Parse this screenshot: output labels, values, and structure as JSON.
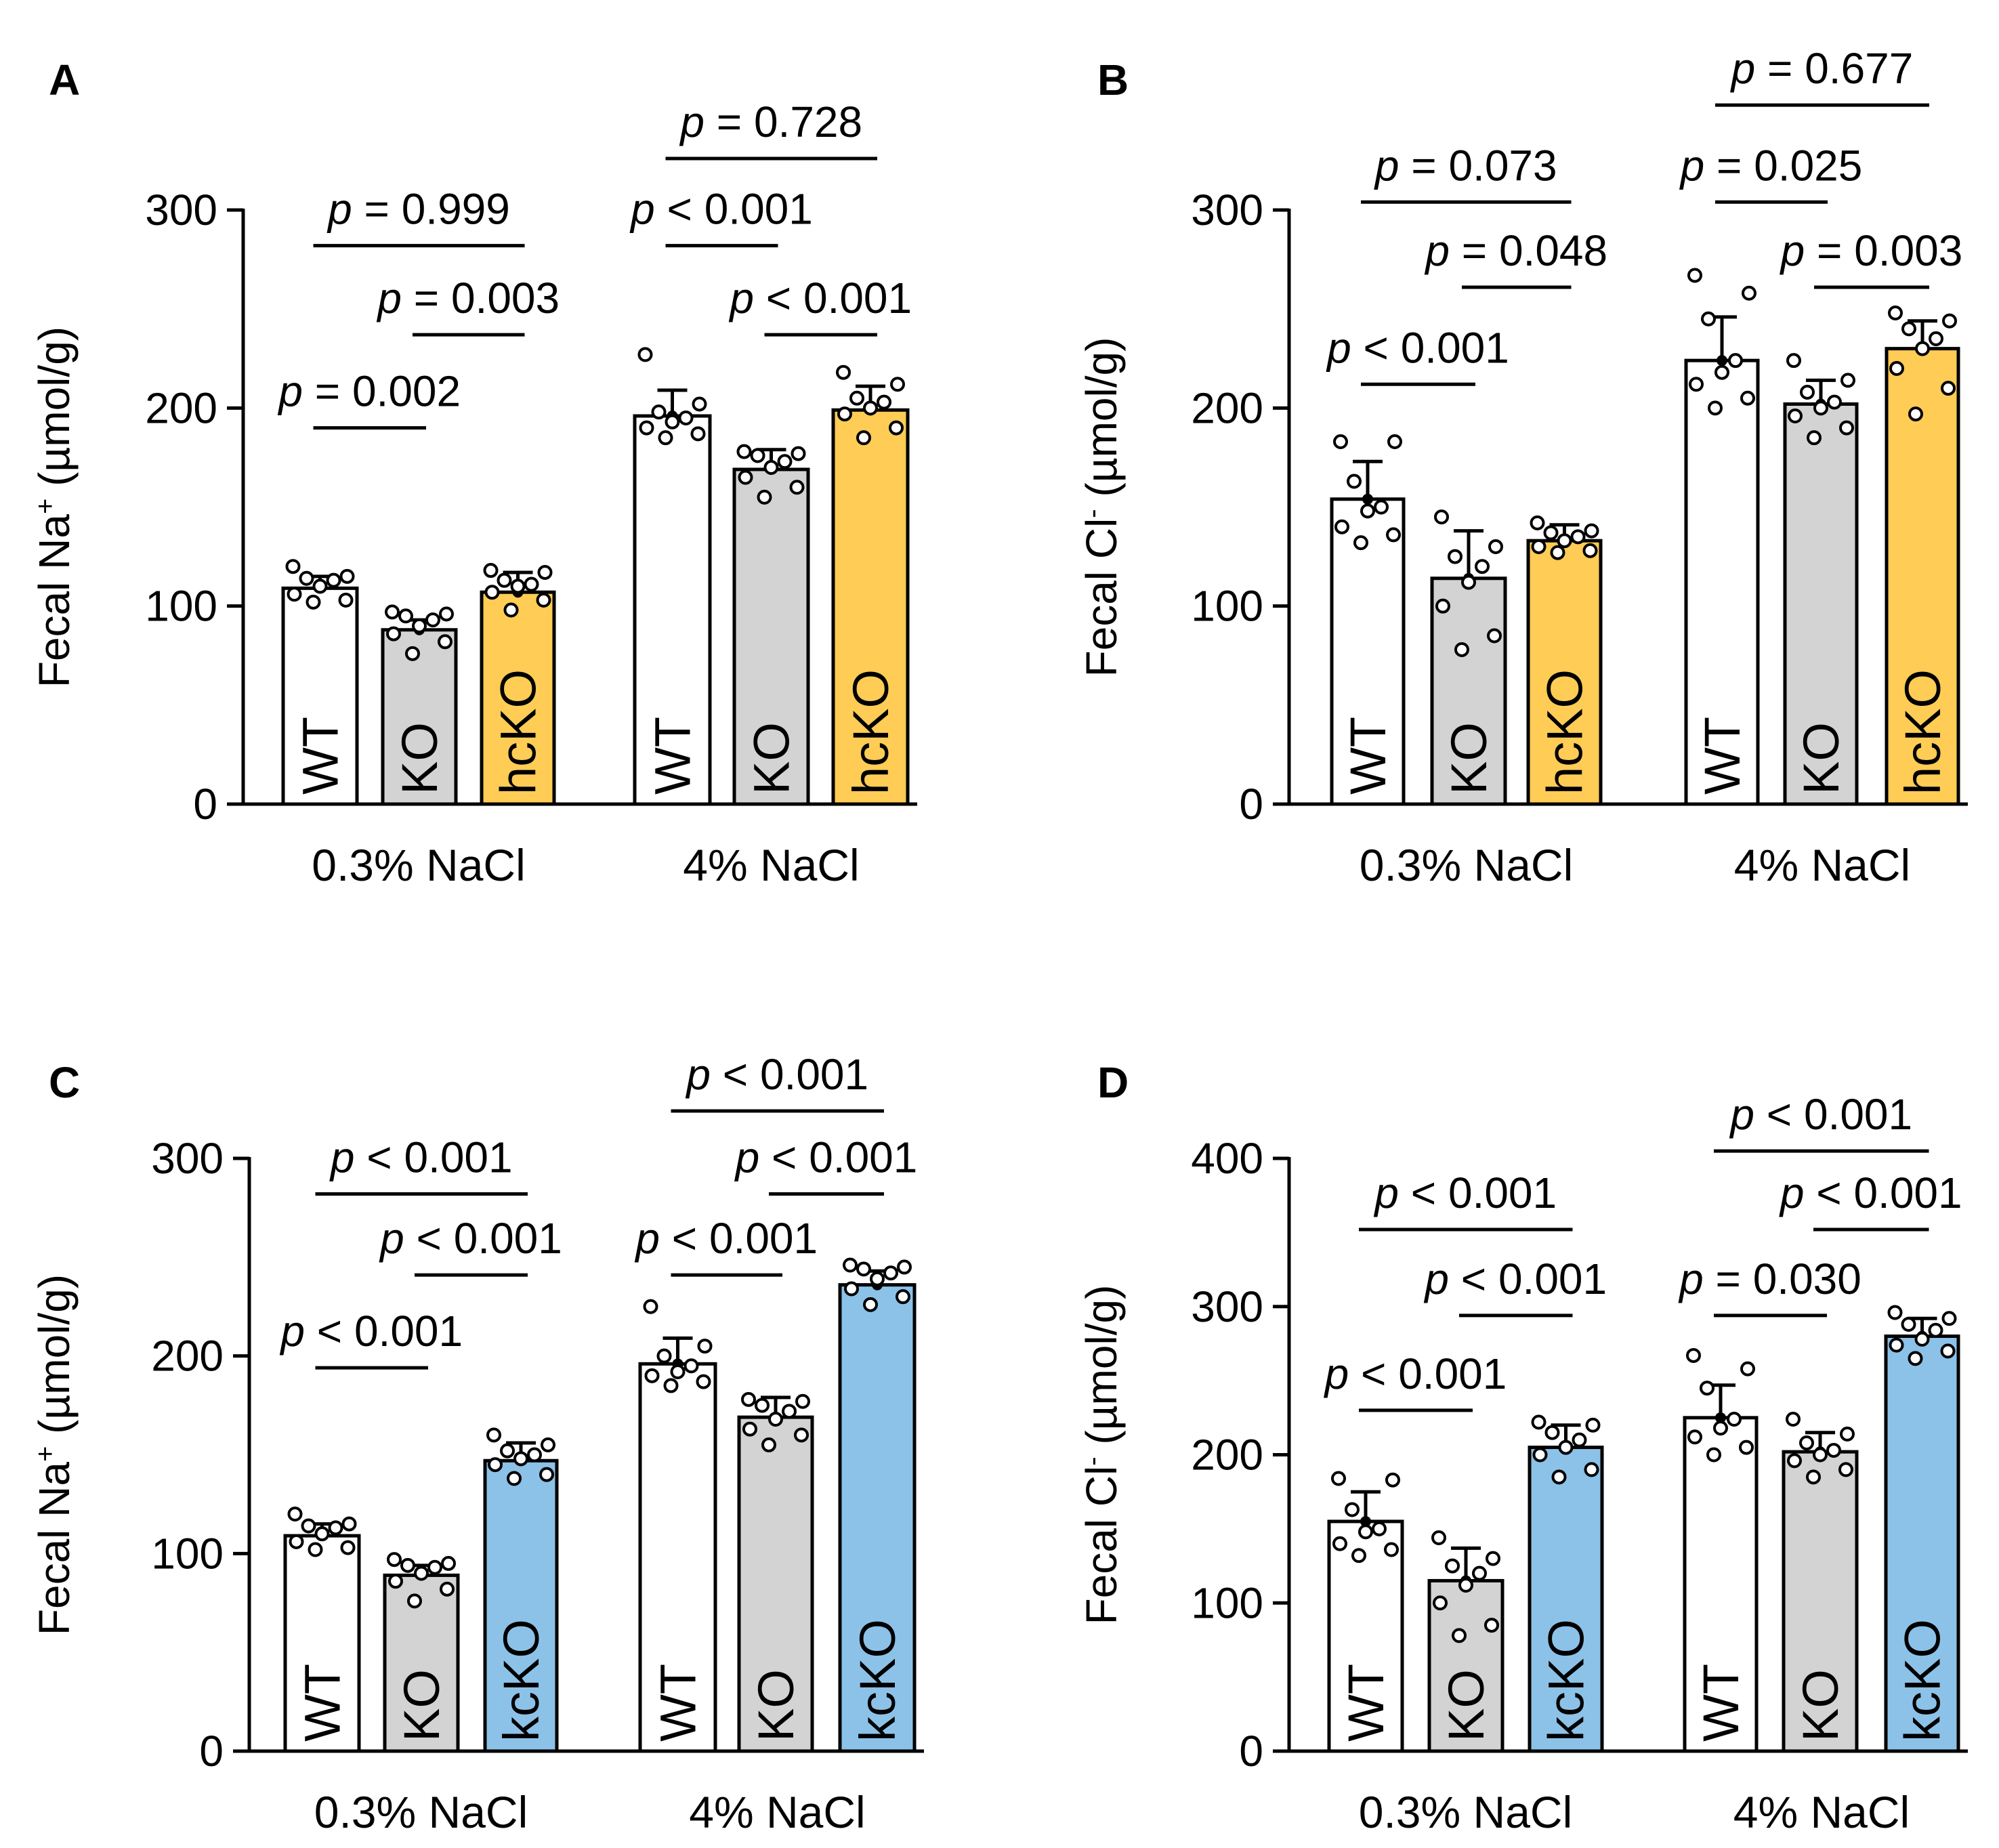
{
  "colors": {
    "wt": "#ffffff",
    "ko": "#d3d3d3",
    "hcko": "#ffcc55",
    "kcko": "#8cc2e8",
    "stroke": "#000000"
  },
  "chart_data": [
    {
      "type": "bar",
      "panel": "A",
      "ylabel_main": "Fecal Na",
      "ylabel_sup": "+",
      "ylabel_unit": " (µmol/g)",
      "ylim": [
        0,
        300
      ],
      "yticks": [
        0,
        100,
        200,
        300
      ],
      "groups": [
        {
          "label": "0.3% NaCl",
          "bars": [
            {
              "label": "WT",
              "color": "wt",
              "mean": 109,
              "err": 6,
              "points": [
                120,
                115,
                114,
                113,
                110,
                106,
                103,
                102
              ]
            },
            {
              "label": "KO",
              "color": "ko",
              "mean": 88,
              "err": 5,
              "points": [
                97,
                96,
                95,
                93,
                90,
                86,
                82,
                76
              ]
            },
            {
              "label": "hcKO",
              "color": "hcko",
              "mean": 107,
              "err": 10,
              "points": [
                118,
                117,
                113,
                111,
                110,
                107,
                103,
                98
              ]
            }
          ]
        },
        {
          "label": "4% NaCl",
          "bars": [
            {
              "label": "WT",
              "color": "wt",
              "mean": 196,
              "err": 13,
              "points": [
                227,
                202,
                198,
                195,
                193,
                190,
                187,
                185
              ]
            },
            {
              "label": "KO",
              "color": "ko",
              "mean": 169,
              "err": 10,
              "points": [
                178,
                177,
                176,
                173,
                170,
                165,
                160,
                155
              ]
            },
            {
              "label": "hcKO",
              "color": "hcko",
              "mean": 199,
              "err": 12,
              "points": [
                218,
                212,
                205,
                203,
                200,
                197,
                190,
                185
              ]
            }
          ]
        }
      ],
      "comparisons": [
        {
          "label": "p = 0.002",
          "from": [
            0,
            0
          ],
          "to": [
            0,
            1
          ],
          "y": 190
        },
        {
          "label": "p = 0.003",
          "from": [
            0,
            1
          ],
          "to": [
            0,
            2
          ],
          "y": 237
        },
        {
          "label": "p = 0.999",
          "from": [
            0,
            0
          ],
          "to": [
            0,
            2
          ],
          "y": 282
        },
        {
          "label": "p < 0.001",
          "from": [
            1,
            0
          ],
          "to": [
            1,
            1
          ],
          "y": 282
        },
        {
          "label": "p < 0.001",
          "from": [
            1,
            1
          ],
          "to": [
            1,
            2
          ],
          "y": 237
        },
        {
          "label": "p = 0.728",
          "from": [
            1,
            0
          ],
          "to": [
            1,
            2
          ],
          "y": 326
        }
      ]
    },
    {
      "type": "bar",
      "panel": "B",
      "ylabel_main": "Fecal Cl",
      "ylabel_sup": "-",
      "ylabel_unit": " (µmol/g)",
      "ylim": [
        0,
        300
      ],
      "yticks": [
        0,
        100,
        200,
        300
      ],
      "groups": [
        {
          "label": "0.3% NaCl",
          "bars": [
            {
              "label": "WT",
              "color": "wt",
              "mean": 154,
              "err": 19,
              "points": [
                183,
                183,
                163,
                150,
                148,
                140,
                136,
                132
              ]
            },
            {
              "label": "KO",
              "color": "ko",
              "mean": 114,
              "err": 24,
              "points": [
                145,
                130,
                125,
                120,
                112,
                100,
                85,
                78
              ]
            },
            {
              "label": "hcKO",
              "color": "hcko",
              "mean": 133,
              "err": 8,
              "points": [
                142,
                138,
                137,
                135,
                133,
                130,
                128,
                127
              ]
            }
          ]
        },
        {
          "label": "4% NaCl",
          "bars": [
            {
              "label": "WT",
              "color": "wt",
              "mean": 224,
              "err": 22,
              "points": [
                267,
                258,
                245,
                224,
                218,
                212,
                205,
                200
              ]
            },
            {
              "label": "KO",
              "color": "ko",
              "mean": 202,
              "err": 12,
              "points": [
                224,
                214,
                208,
                203,
                200,
                196,
                190,
                185
              ]
            },
            {
              "label": "hcKO",
              "color": "hcko",
              "mean": 230,
              "err": 14,
              "points": [
                248,
                244,
                240,
                235,
                230,
                220,
                210,
                197
              ]
            }
          ]
        }
      ],
      "comparisons": [
        {
          "label": "p < 0.001",
          "from": [
            0,
            0
          ],
          "to": [
            0,
            1
          ],
          "y": 212
        },
        {
          "label": "p = 0.048",
          "from": [
            0,
            1
          ],
          "to": [
            0,
            2
          ],
          "y": 261
        },
        {
          "label": "p = 0.073",
          "from": [
            0,
            0
          ],
          "to": [
            0,
            2
          ],
          "y": 304
        },
        {
          "label": "p = 0.025",
          "from": [
            1,
            0
          ],
          "to": [
            1,
            1
          ],
          "y": 304
        },
        {
          "label": "p = 0.003",
          "from": [
            1,
            1
          ],
          "to": [
            1,
            2
          ],
          "y": 261
        },
        {
          "label": "p = 0.677",
          "from": [
            1,
            0
          ],
          "to": [
            1,
            2
          ],
          "y": 353
        }
      ]
    },
    {
      "type": "bar",
      "panel": "C",
      "ylabel_main": "Fecal Na",
      "ylabel_sup": "+",
      "ylabel_unit": " (µmol/g)",
      "ylim": [
        0,
        300
      ],
      "yticks": [
        0,
        100,
        200,
        300
      ],
      "groups": [
        {
          "label": "0.3% NaCl",
          "bars": [
            {
              "label": "WT",
              "color": "wt",
              "mean": 109,
              "err": 6,
              "points": [
                120,
                115,
                114,
                113,
                110,
                106,
                103,
                102
              ]
            },
            {
              "label": "KO",
              "color": "ko",
              "mean": 89,
              "err": 5,
              "points": [
                97,
                95,
                94,
                93,
                90,
                86,
                82,
                76
              ]
            },
            {
              "label": "kcKO",
              "color": "kcko",
              "mean": 147,
              "err": 9,
              "points": [
                160,
                155,
                152,
                150,
                148,
                145,
                140,
                138
              ]
            }
          ]
        },
        {
          "label": "4% NaCl",
          "bars": [
            {
              "label": "WT",
              "color": "wt",
              "mean": 196,
              "err": 13,
              "points": [
                225,
                205,
                200,
                195,
                192,
                190,
                187,
                185
              ]
            },
            {
              "label": "KO",
              "color": "ko",
              "mean": 169,
              "err": 10,
              "points": [
                178,
                177,
                175,
                172,
                168,
                163,
                160,
                155
              ]
            },
            {
              "label": "kcKO",
              "color": "kcko",
              "mean": 236,
              "err": 7,
              "points": [
                246,
                245,
                244,
                242,
                239,
                234,
                230,
                226
              ]
            }
          ]
        }
      ],
      "comparisons": [
        {
          "label": "p < 0.001",
          "from": [
            0,
            0
          ],
          "to": [
            0,
            1
          ],
          "y": 194
        },
        {
          "label": "p < 0.001",
          "from": [
            0,
            1
          ],
          "to": [
            0,
            2
          ],
          "y": 241
        },
        {
          "label": "p < 0.001",
          "from": [
            0,
            0
          ],
          "to": [
            0,
            2
          ],
          "y": 282
        },
        {
          "label": "p < 0.001",
          "from": [
            1,
            0
          ],
          "to": [
            1,
            1
          ],
          "y": 241
        },
        {
          "label": "p < 0.001",
          "from": [
            1,
            1
          ],
          "to": [
            1,
            2
          ],
          "y": 282
        },
        {
          "label": "p < 0.001",
          "from": [
            1,
            0
          ],
          "to": [
            1,
            2
          ],
          "y": 324
        }
      ]
    },
    {
      "type": "bar",
      "panel": "D",
      "ylabel_main": "Fecal Cl",
      "ylabel_sup": "-",
      "ylabel_unit": " (µmol/g)",
      "ylim": [
        0,
        400
      ],
      "yticks": [
        0,
        100,
        200,
        300,
        400
      ],
      "groups": [
        {
          "label": "0.3% NaCl",
          "bars": [
            {
              "label": "WT",
              "color": "wt",
              "mean": 155,
              "err": 20,
              "points": [
                184,
                183,
                163,
                150,
                148,
                140,
                136,
                132
              ]
            },
            {
              "label": "KO",
              "color": "ko",
              "mean": 115,
              "err": 22,
              "points": [
                144,
                130,
                125,
                120,
                112,
                100,
                85,
                78
              ]
            },
            {
              "label": "kcKO",
              "color": "kcko",
              "mean": 205,
              "err": 15,
              "points": [
                222,
                220,
                215,
                210,
                205,
                200,
                190,
                185
              ]
            }
          ]
        },
        {
          "label": "4% NaCl",
          "bars": [
            {
              "label": "WT",
              "color": "wt",
              "mean": 225,
              "err": 22,
              "points": [
                267,
                258,
                245,
                224,
                218,
                212,
                205,
                200
              ]
            },
            {
              "label": "KO",
              "color": "ko",
              "mean": 202,
              "err": 13,
              "points": [
                224,
                214,
                208,
                203,
                200,
                196,
                190,
                185
              ]
            },
            {
              "label": "kcKO",
              "color": "kcko",
              "mean": 280,
              "err": 12,
              "points": [
                296,
                292,
                288,
                284,
                278,
                274,
                270,
                265
              ]
            }
          ]
        }
      ],
      "comparisons": [
        {
          "label": "p < 0.001",
          "from": [
            0,
            0
          ],
          "to": [
            0,
            1
          ],
          "y": 230
        },
        {
          "label": "p < 0.001",
          "from": [
            0,
            1
          ],
          "to": [
            0,
            2
          ],
          "y": 294
        },
        {
          "label": "p < 0.001",
          "from": [
            0,
            0
          ],
          "to": [
            0,
            2
          ],
          "y": 352
        },
        {
          "label": "p = 0.030",
          "from": [
            1,
            0
          ],
          "to": [
            1,
            1
          ],
          "y": 294
        },
        {
          "label": "p < 0.001",
          "from": [
            1,
            1
          ],
          "to": [
            1,
            2
          ],
          "y": 352
        },
        {
          "label": "p < 0.001",
          "from": [
            1,
            0
          ],
          "to": [
            1,
            2
          ],
          "y": 405
        }
      ]
    }
  ]
}
